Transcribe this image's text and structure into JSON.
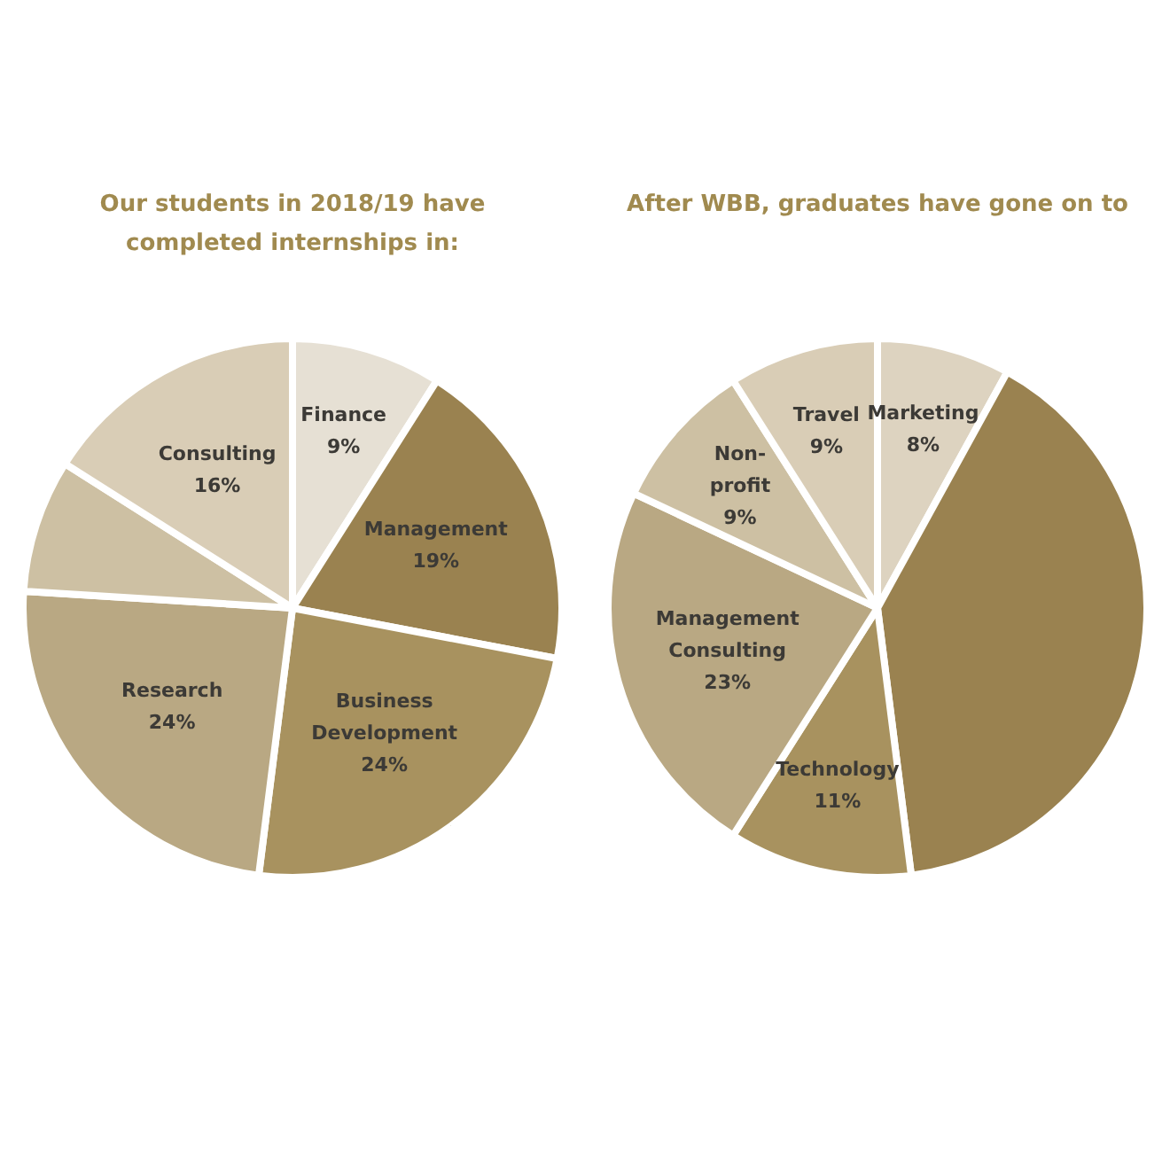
{
  "chart_data": [
    {
      "type": "pie",
      "title": "Our students in 2018/19 have completed internships in:",
      "categories": [
        "Finance",
        "Management",
        "Business Development",
        "Research",
        null,
        "Consulting"
      ],
      "values": [
        9,
        19,
        24,
        24,
        8,
        16
      ],
      "value_labels": [
        "9%",
        "19%",
        "24%",
        "24%",
        null,
        "16%"
      ],
      "colors": [
        "#e6e0d4",
        "#9a8250",
        "#a8925f",
        "#b9a883",
        "#cdc0a3",
        "#d9cdb6"
      ]
    },
    {
      "type": "pie",
      "title": "After WBB, graduates have gone on to",
      "categories": [
        "Marketing",
        null,
        "Technology",
        "Management Consulting",
        "Non-profit",
        "Travel"
      ],
      "values": [
        8,
        40,
        11,
        23,
        9,
        9
      ],
      "value_labels": [
        "8%",
        null,
        "11%",
        "23%",
        "9%",
        "9%"
      ],
      "colors": [
        "#ddd3c0",
        "#9a8250",
        "#a8925f",
        "#b9a883",
        "#cdc0a3",
        "#d9cdb6"
      ]
    }
  ]
}
